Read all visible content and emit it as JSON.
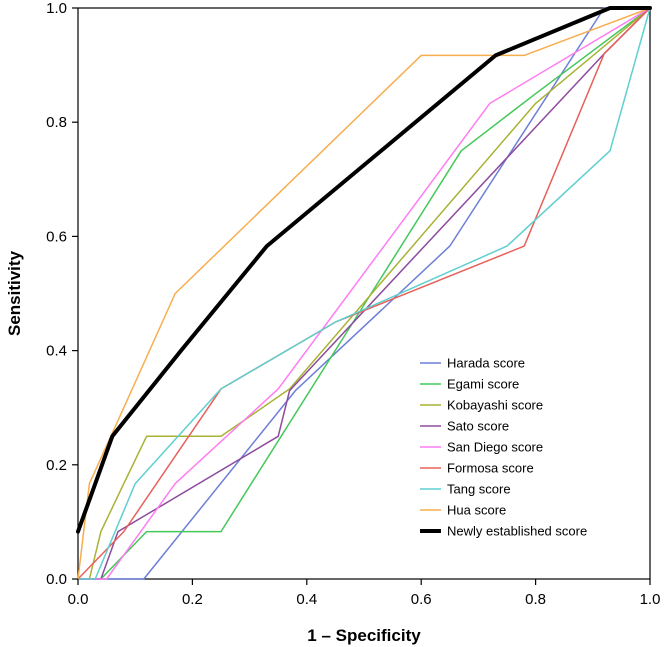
{
  "chart_data": {
    "type": "line",
    "title": "",
    "xlabel": "1 – Specificity",
    "ylabel": "Sensitivity",
    "xlim": [
      0.0,
      1.0
    ],
    "ylim": [
      0.0,
      1.0
    ],
    "xticks": [
      "0.0",
      "0.2",
      "0.4",
      "0.6",
      "0.8",
      "1.0"
    ],
    "yticks": [
      "0.0",
      "0.2",
      "0.4",
      "0.6",
      "0.8",
      "1.0"
    ],
    "grid": false,
    "legend_position": "bottom-right",
    "series": [
      {
        "name": "Harada score",
        "color": "#6b7fd7",
        "width": 1.5,
        "x": [
          0,
          0.115,
          0.38,
          0.65,
          0.92,
          1.0
        ],
        "y": [
          0,
          0,
          0.33,
          0.583,
          1.0,
          1.0
        ]
      },
      {
        "name": "Egami score",
        "color": "#44c85a",
        "width": 1.5,
        "x": [
          0,
          0.04,
          0.12,
          0.25,
          0.67,
          0.8,
          1.0
        ],
        "y": [
          0,
          0,
          0.083,
          0.083,
          0.75,
          0.85,
          1.0
        ]
      },
      {
        "name": "Kobayashi score",
        "color": "#a8b233",
        "width": 1.5,
        "x": [
          0,
          0.02,
          0.04,
          0.08,
          0.12,
          0.25,
          0.37,
          0.8,
          1.0
        ],
        "y": [
          0,
          0,
          0.083,
          0.167,
          0.25,
          0.25,
          0.333,
          0.833,
          1.0
        ]
      },
      {
        "name": "Sato score",
        "color": "#8e4b9e",
        "width": 1.5,
        "x": [
          0,
          0.04,
          0.07,
          0.35,
          0.37,
          0.92,
          1.0
        ],
        "y": [
          0,
          0,
          0.083,
          0.25,
          0.33,
          0.92,
          1.0
        ]
      },
      {
        "name": "San Diego score",
        "color": "#ff7cf2",
        "width": 1.5,
        "x": [
          0,
          0.05,
          0.17,
          0.35,
          0.72,
          1.0
        ],
        "y": [
          0,
          0,
          0.167,
          0.333,
          0.833,
          1.0
        ]
      },
      {
        "name": "Formosa score",
        "color": "#e8605a",
        "width": 1.5,
        "x": [
          0,
          0.08,
          0.25,
          0.45,
          0.78,
          0.92,
          1.0
        ],
        "y": [
          0,
          0.083,
          0.333,
          0.45,
          0.583,
          0.92,
          1.0
        ]
      },
      {
        "name": "Tang score",
        "color": "#5fcfd0",
        "width": 1.5,
        "x": [
          0,
          0.03,
          0.1,
          0.25,
          0.45,
          0.75,
          0.93,
          1.0
        ],
        "y": [
          0,
          0,
          0.167,
          0.333,
          0.45,
          0.583,
          0.75,
          1.0
        ]
      },
      {
        "name": "Hua score",
        "color": "#f6ae4f",
        "width": 1.5,
        "x": [
          0,
          0.02,
          0.08,
          0.17,
          0.6,
          0.78,
          1.0
        ],
        "y": [
          0,
          0.167,
          0.3,
          0.5,
          0.917,
          0.917,
          1.0
        ]
      },
      {
        "name": "Newly established score",
        "color": "#000000",
        "width": 4,
        "x": [
          0,
          0.06,
          0.18,
          0.33,
          0.73,
          0.93,
          1.0
        ],
        "y": [
          0.083,
          0.25,
          0.4,
          0.583,
          0.917,
          1.0,
          1.0
        ]
      }
    ]
  }
}
